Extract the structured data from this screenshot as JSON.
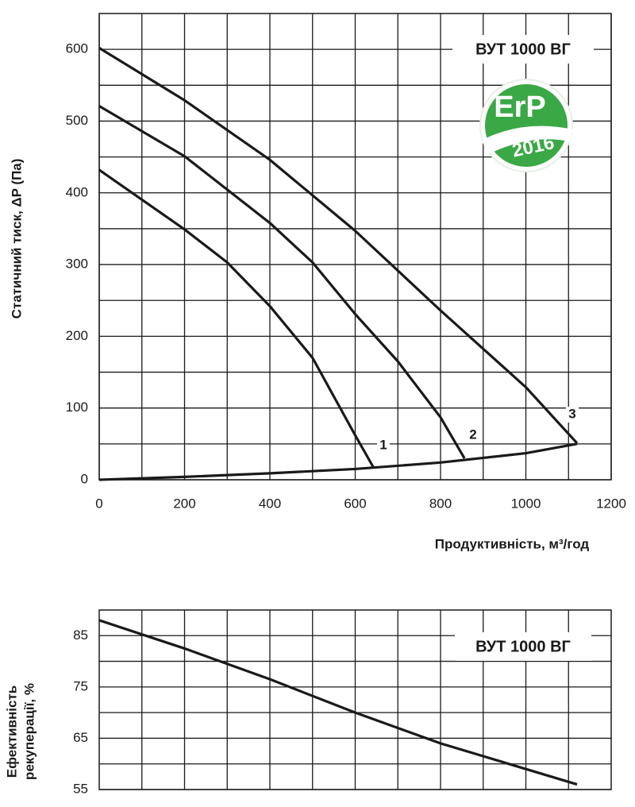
{
  "chart_data": [
    {
      "type": "line",
      "ylabel": "Статичний тиск, ΔP (Па)",
      "xlabel": "Продуктивність, м³/год",
      "model": "ВУТ 1000 ВГ",
      "badge": "ErP",
      "badge_year": "2016",
      "xlim": [
        0,
        1200
      ],
      "xticks": [
        0,
        200,
        400,
        600,
        800,
        1000,
        1200
      ],
      "ylim": [
        0,
        650
      ],
      "yticks": [
        0,
        100,
        200,
        300,
        400,
        500,
        600
      ],
      "grid": true,
      "series": [
        {
          "name": "1",
          "color": "#1a1a1a",
          "x": [
            0,
            200,
            300,
            400,
            500,
            600,
            642
          ],
          "values": [
            432,
            349,
            303,
            242,
            170,
            62,
            18
          ]
        },
        {
          "name": "2",
          "color": "#1a1a1a",
          "x": [
            0,
            200,
            400,
            500,
            600,
            700,
            800,
            856
          ],
          "values": [
            521,
            451,
            358,
            303,
            231,
            165,
            87,
            30
          ]
        },
        {
          "name": "3",
          "color": "#1a1a1a",
          "x": [
            0,
            200,
            400,
            600,
            800,
            1000,
            1120
          ],
          "values": [
            602,
            529,
            446,
            347,
            236,
            129,
            51
          ]
        },
        {
          "color": "#1a1a1a",
          "x": [
            0,
            200,
            400,
            600,
            800,
            1000,
            1120
          ],
          "values": [
            0,
            4,
            9,
            15,
            24,
            37,
            50
          ]
        }
      ]
    },
    {
      "type": "line",
      "ylabel": [
        "Ефективність",
        "рекуперації, %"
      ],
      "model": "ВУТ 1000 ВГ",
      "xlim": [
        0,
        1200
      ],
      "ylim": [
        55,
        90
      ],
      "yticks": [
        55,
        65,
        75,
        85
      ],
      "grid": true,
      "series": [
        {
          "color": "#1a1a1a",
          "x": [
            0,
            200,
            400,
            600,
            800,
            1000,
            1120
          ],
          "values": [
            88,
            82.5,
            76.5,
            70,
            64,
            59,
            56
          ]
        }
      ]
    }
  ]
}
